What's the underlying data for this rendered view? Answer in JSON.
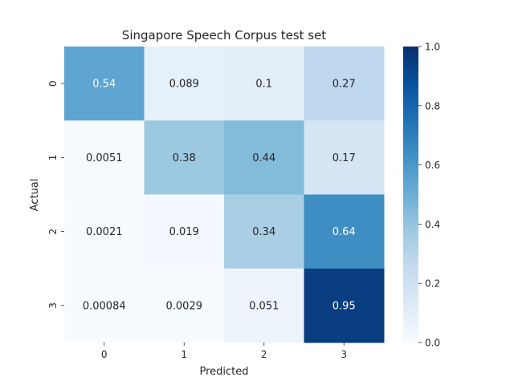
{
  "chart_data": {
    "type": "heatmap",
    "title": "Singapore Speech Corpus test set",
    "xlabel": "Predicted",
    "ylabel": "Actual",
    "x_categories": [
      "0",
      "1",
      "2",
      "3"
    ],
    "y_categories": [
      "0",
      "1",
      "2",
      "3"
    ],
    "values": [
      [
        0.54,
        0.089,
        0.1,
        0.27
      ],
      [
        0.0051,
        0.38,
        0.44,
        0.17
      ],
      [
        0.0021,
        0.019,
        0.34,
        0.64
      ],
      [
        0.00084,
        0.0029,
        0.051,
        0.95
      ]
    ],
    "cell_labels": [
      [
        "0.54",
        "0.089",
        "0.1",
        "0.27"
      ],
      [
        "0.0051",
        "0.38",
        "0.44",
        "0.17"
      ],
      [
        "0.0021",
        "0.019",
        "0.34",
        "0.64"
      ],
      [
        "0.00084",
        "0.0029",
        "0.051",
        "0.95"
      ]
    ],
    "colorbar": {
      "min": 0.0,
      "max": 1.0,
      "ticks": [
        "0.0",
        "0.2",
        "0.4",
        "0.6",
        "0.8",
        "1.0"
      ],
      "colormap": "Blues"
    }
  }
}
